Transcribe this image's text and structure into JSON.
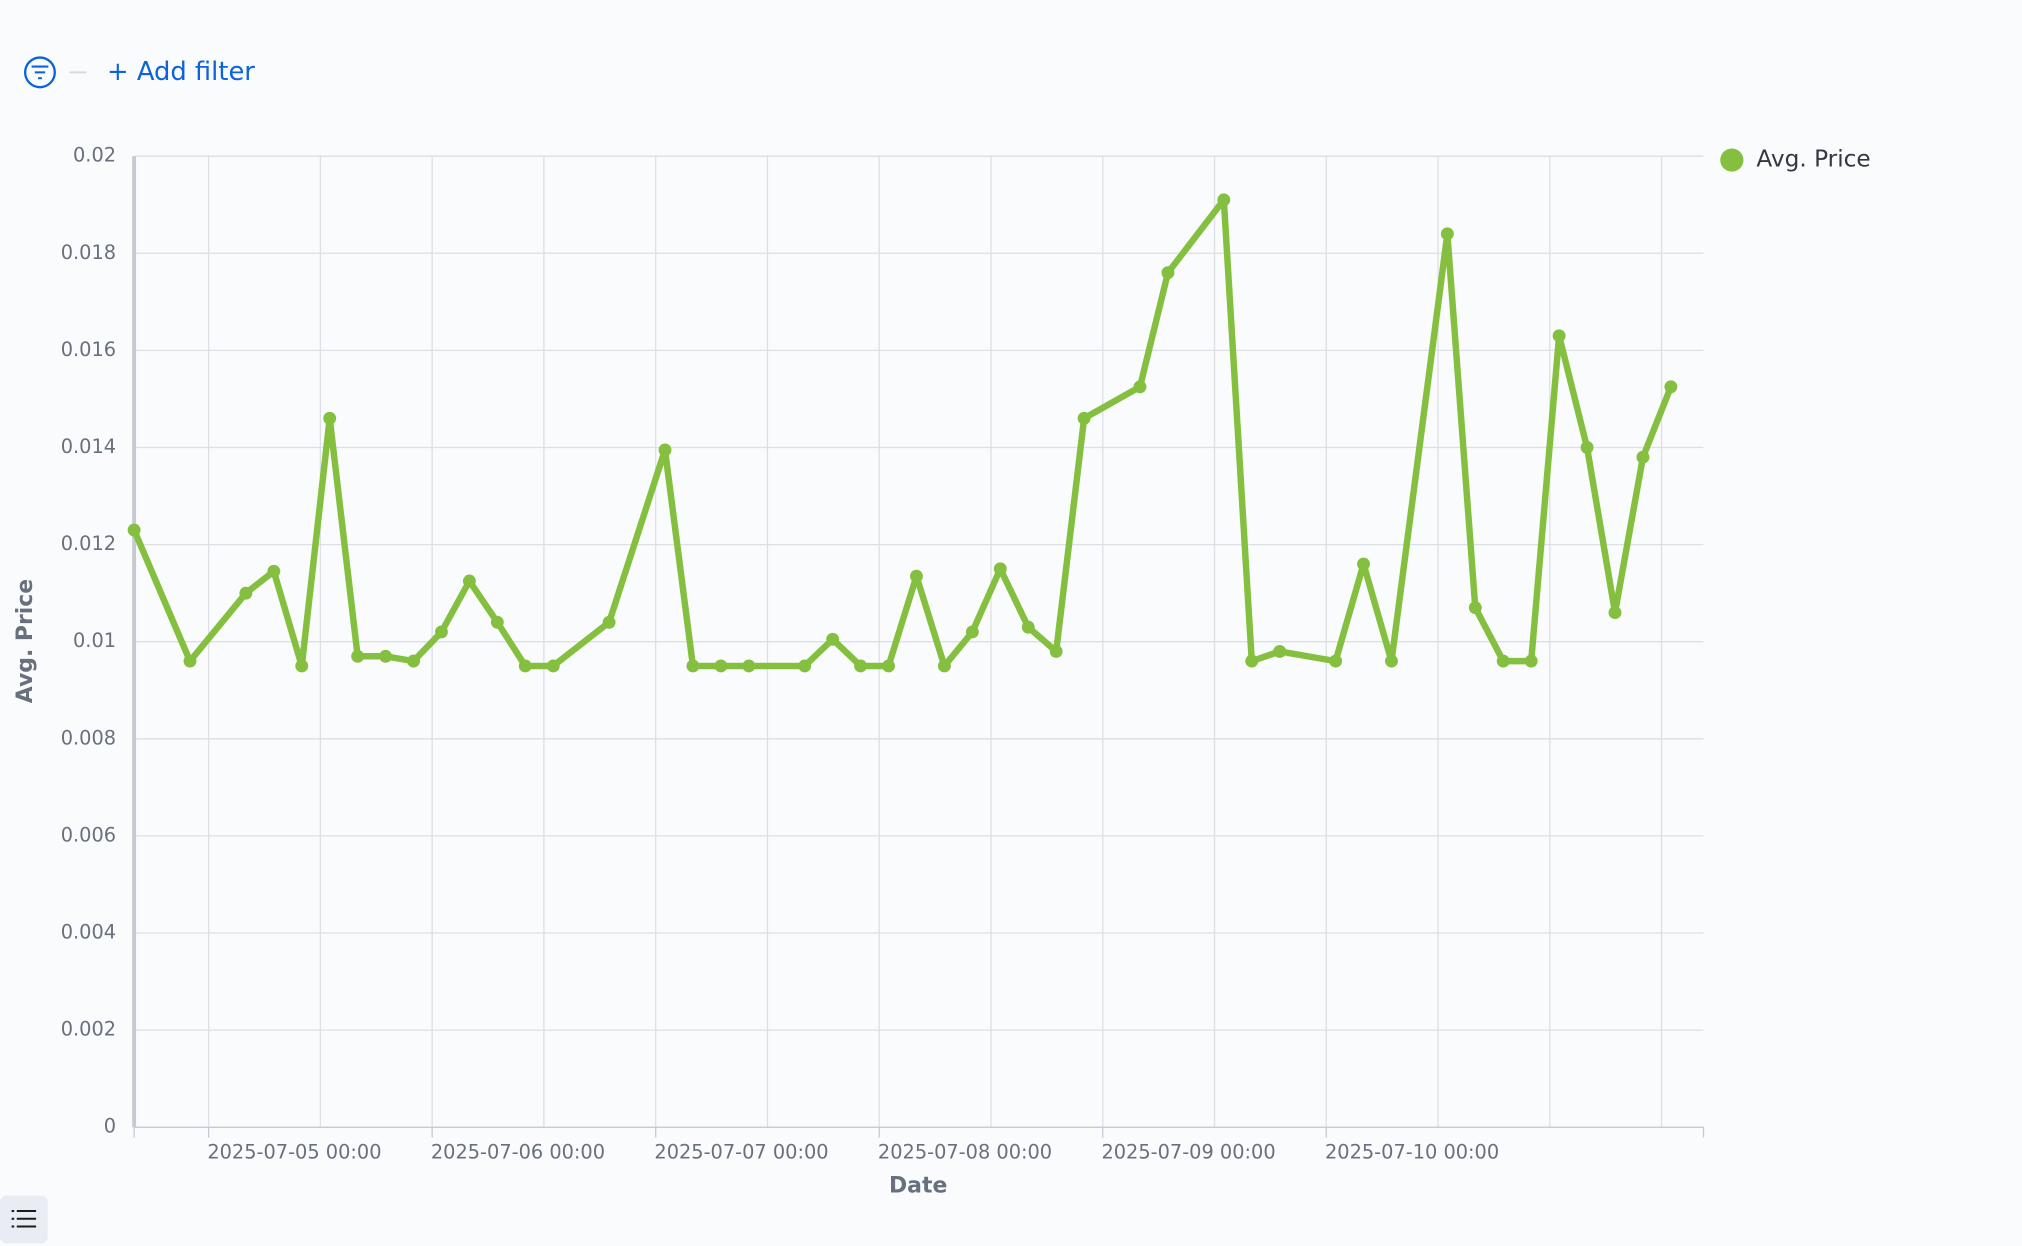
{
  "filter_bar": {
    "add_filter": "+ Add filter"
  },
  "chart_data": {
    "type": "line",
    "x_label": "Date",
    "y_label": "Avg. Price",
    "x": [
      "2025-07-04 16:00",
      "2025-07-04 22:00",
      "2025-07-05 04:00",
      "2025-07-05 07:00",
      "2025-07-05 10:00",
      "2025-07-05 13:00",
      "2025-07-05 16:00",
      "2025-07-05 19:00",
      "2025-07-05 22:00",
      "2025-07-06 01:00",
      "2025-07-06 04:00",
      "2025-07-06 07:00",
      "2025-07-06 10:00",
      "2025-07-06 13:00",
      "2025-07-06 19:00",
      "2025-07-07 01:00",
      "2025-07-07 04:00",
      "2025-07-07 07:00",
      "2025-07-07 10:00",
      "2025-07-07 16:00",
      "2025-07-07 19:00",
      "2025-07-07 22:00",
      "2025-07-08 01:00",
      "2025-07-08 04:00",
      "2025-07-08 07:00",
      "2025-07-08 10:00",
      "2025-07-08 13:00",
      "2025-07-08 16:00",
      "2025-07-08 19:00",
      "2025-07-08 22:00",
      "2025-07-09 04:00",
      "2025-07-09 07:00",
      "2025-07-09 13:00",
      "2025-07-09 16:00",
      "2025-07-09 19:00",
      "2025-07-10 01:00",
      "2025-07-10 04:00",
      "2025-07-10 07:00",
      "2025-07-10 13:00",
      "2025-07-10 16:00",
      "2025-07-10 19:00",
      "2025-07-10 22:00",
      "2025-07-11 01:00",
      "2025-07-11 04:00",
      "2025-07-11 07:00",
      "2025-07-11 10:00",
      "2025-07-11 13:00"
    ],
    "series": [
      {
        "name": "Avg. Price",
        "color": "#85bf3f",
        "values": [
          0.0123,
          0.0096,
          0.011,
          0.01145,
          0.0095,
          0.0146,
          0.0097,
          0.0097,
          0.0096,
          0.0102,
          0.01125,
          0.0104,
          0.0095,
          0.0095,
          0.0104,
          0.01395,
          0.0095,
          0.0095,
          0.0095,
          0.0095,
          0.01005,
          0.0095,
          0.0095,
          0.01135,
          0.0095,
          0.0102,
          0.0115,
          0.0103,
          0.0098,
          0.0146,
          0.01525,
          0.0176,
          0.0191,
          0.0096,
          0.0098,
          0.0096,
          0.0116,
          0.0096,
          0.0184,
          0.0107,
          0.0096,
          0.0096,
          0.0163,
          0.014,
          0.0106,
          0.0138,
          0.01525
        ]
      }
    ],
    "xlim": [
      "2025-07-04 16:00",
      "2025-07-11 16:30"
    ],
    "xticks": [
      "2025-07-05 00:00",
      "2025-07-06 00:00",
      "2025-07-07 00:00",
      "2025-07-08 00:00",
      "2025-07-09 00:00",
      "2025-07-10 00:00"
    ],
    "xgrid": [
      "2025-07-05 00:00",
      "2025-07-05 12:00",
      "2025-07-06 00:00",
      "2025-07-06 12:00",
      "2025-07-07 00:00",
      "2025-07-07 12:00",
      "2025-07-08 00:00",
      "2025-07-08 12:00",
      "2025-07-09 00:00",
      "2025-07-09 12:00",
      "2025-07-10 00:00",
      "2025-07-10 12:00",
      "2025-07-11 00:00",
      "2025-07-11 12:00"
    ],
    "ylim": [
      0,
      0.02
    ],
    "yticks": [
      0,
      0.002,
      0.004,
      0.006,
      0.008,
      0.01,
      0.012,
      0.014,
      0.016,
      0.018,
      0.02
    ],
    "grid": true,
    "legend": "top-right"
  }
}
